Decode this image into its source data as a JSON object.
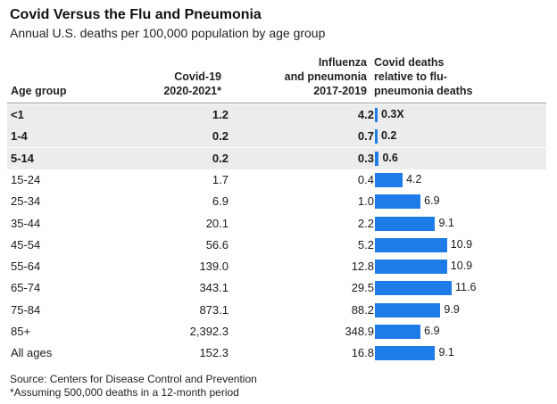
{
  "title": "Covid Versus the Flu and Pneumonia",
  "subtitle": "Annual U.S. deaths per 100,000 population by age group",
  "headers": {
    "age": "Age group",
    "covid_line1": "Covid-19",
    "covid_line2": "2020-2021*",
    "flu_line1": "Influenza",
    "flu_line2": "and pneumonia",
    "flu_line3": "2017-2019",
    "ratio_line1": "Covid deaths",
    "ratio_line2": "relative to flu-",
    "ratio_line3": "pneumonia deaths"
  },
  "chart_data": {
    "type": "table",
    "columns": [
      "Age group",
      "Covid-19 2020-2021*",
      "Influenza and pneumonia 2017-2019",
      "Covid deaths relative to flu-pneumonia deaths"
    ],
    "rows": [
      {
        "age": "<1",
        "covid": "1.2",
        "flu": "4.2",
        "ratio": 0.3,
        "ratio_label": "0.3X",
        "highlight": true
      },
      {
        "age": "1-4",
        "covid": "0.2",
        "flu": "0.7",
        "ratio": 0.2,
        "ratio_label": "0.2",
        "highlight": true
      },
      {
        "age": "5-14",
        "covid": "0.2",
        "flu": "0.3",
        "ratio": 0.6,
        "ratio_label": "0.6",
        "highlight": true
      },
      {
        "age": "15-24",
        "covid": "1.7",
        "flu": "0.4",
        "ratio": 4.2,
        "ratio_label": "4.2",
        "highlight": false
      },
      {
        "age": "25-34",
        "covid": "6.9",
        "flu": "1.0",
        "ratio": 6.9,
        "ratio_label": "6.9",
        "highlight": false
      },
      {
        "age": "35-44",
        "covid": "20.1",
        "flu": "2.2",
        "ratio": 9.1,
        "ratio_label": "9.1",
        "highlight": false
      },
      {
        "age": "45-54",
        "covid": "56.6",
        "flu": "5.2",
        "ratio": 10.9,
        "ratio_label": "10.9",
        "highlight": false
      },
      {
        "age": "55-64",
        "covid": "139.0",
        "flu": "12.8",
        "ratio": 10.9,
        "ratio_label": "10.9",
        "highlight": false
      },
      {
        "age": "65-74",
        "covid": "343.1",
        "flu": "29.5",
        "ratio": 11.6,
        "ratio_label": "11.6",
        "highlight": false
      },
      {
        "age": "75-84",
        "covid": "873.1",
        "flu": "88.2",
        "ratio": 9.9,
        "ratio_label": "9.9",
        "highlight": false
      },
      {
        "age": "85+",
        "covid": "2,392.3",
        "flu": "348.9",
        "ratio": 6.9,
        "ratio_label": "6.9",
        "highlight": false
      },
      {
        "age": "All ages",
        "covid": "152.3",
        "flu": "16.8",
        "ratio": 9.1,
        "ratio_label": "9.1",
        "highlight": false
      }
    ],
    "bar_color": "#1e7ce8",
    "highlight_color": "#ececec"
  },
  "source": "Source: Centers for Disease Control and Prevention",
  "footnote": "*Assuming 500,000 deaths in a 12-month period"
}
